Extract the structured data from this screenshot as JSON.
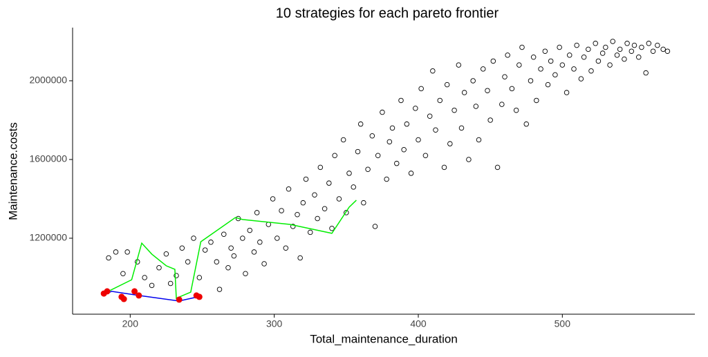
{
  "chart_data": {
    "type": "scatter",
    "title": "10  strategies for each pareto frontier",
    "x_label": "Total_maintenance_duration",
    "y_label": "Maintenance.costs",
    "xlim": [
      160,
      592
    ],
    "ylim": [
      814000,
      2270000
    ],
    "xticks": [
      200,
      300,
      400,
      500
    ],
    "yticks": [
      1200000,
      1600000,
      2000000
    ],
    "series": [
      {
        "kind": "points",
        "color": "#000000",
        "x": [
          185,
          190,
          195,
          198,
          205,
          210,
          215,
          220,
          225,
          228,
          232,
          236,
          240,
          244,
          248,
          252,
          256,
          260,
          262,
          265,
          268,
          270,
          272,
          275,
          278,
          280,
          283,
          286,
          288,
          290,
          293,
          296,
          299,
          302,
          305,
          308,
          310,
          313,
          316,
          318,
          320,
          322,
          325,
          328,
          330,
          332,
          335,
          338,
          340,
          342,
          345,
          348,
          350,
          352,
          355,
          358,
          360,
          362,
          365,
          368,
          370,
          372,
          375,
          378,
          380,
          382,
          385,
          388,
          390,
          392,
          395,
          398,
          400,
          402,
          405,
          408,
          410,
          412,
          415,
          418,
          420,
          422,
          425,
          428,
          430,
          432,
          435,
          438,
          440,
          442,
          445,
          448,
          450,
          452,
          455,
          458,
          460,
          462,
          465,
          468,
          470,
          472,
          475,
          478,
          480,
          482,
          485,
          488,
          490,
          492,
          495,
          498,
          500,
          503,
          505,
          508,
          510,
          513,
          515,
          518,
          520,
          523,
          525,
          528,
          530,
          533,
          535,
          538,
          540,
          543,
          545,
          548,
          550,
          553,
          555,
          558,
          560,
          563,
          566,
          570,
          573
        ],
        "values": [
          1100000,
          1130000,
          1020000,
          1130000,
          1080000,
          1000000,
          960000,
          1050000,
          1120000,
          970000,
          1010000,
          1150000,
          1080000,
          1200000,
          1000000,
          1140000,
          1180000,
          1080000,
          940000,
          1220000,
          1050000,
          1150000,
          1110000,
          1300000,
          1200000,
          1020000,
          1240000,
          1130000,
          1330000,
          1180000,
          1070000,
          1270000,
          1400000,
          1200000,
          1340000,
          1150000,
          1450000,
          1260000,
          1320000,
          1100000,
          1380000,
          1500000,
          1230000,
          1420000,
          1300000,
          1560000,
          1350000,
          1480000,
          1250000,
          1620000,
          1400000,
          1700000,
          1330000,
          1530000,
          1460000,
          1640000,
          1780000,
          1380000,
          1550000,
          1720000,
          1260000,
          1620000,
          1840000,
          1500000,
          1690000,
          1760000,
          1580000,
          1900000,
          1650000,
          1780000,
          1530000,
          1860000,
          1700000,
          1960000,
          1620000,
          1820000,
          2050000,
          1750000,
          1900000,
          1560000,
          1980000,
          1680000,
          1850000,
          2080000,
          1760000,
          1940000,
          1600000,
          2000000,
          1870000,
          1700000,
          2060000,
          1950000,
          1800000,
          2100000,
          1560000,
          1880000,
          2020000,
          2130000,
          1960000,
          1850000,
          2080000,
          2170000,
          1780000,
          2000000,
          2120000,
          1900000,
          2060000,
          2150000,
          1980000,
          2100000,
          2030000,
          2170000,
          2080000,
          1940000,
          2130000,
          2060000,
          2180000,
          2010000,
          2120000,
          2160000,
          2050000,
          2190000,
          2100000,
          2140000,
          2170000,
          2080000,
          2200000,
          2130000,
          2160000,
          2110000,
          2190000,
          2150000,
          2180000,
          2120000,
          2170000,
          2040000,
          2190000,
          2150000,
          2180000,
          2160000,
          2150000
        ]
      },
      {
        "kind": "line",
        "color": "#00ee00",
        "x": [
          181.7,
          201,
          208,
          215,
          225,
          231,
          232,
          242,
          249,
          273,
          278,
          311,
          340,
          352,
          357
        ],
        "values": [
          919000,
          989000,
          1175000,
          1119000,
          1060000,
          1042000,
          895000,
          926000,
          1182000,
          1305000,
          1295000,
          1270000,
          1225000,
          1358000,
          1393000
        ]
      },
      {
        "kind": "line",
        "color": "#0000ee",
        "x": [
          181,
          187,
          206,
          234,
          247
        ],
        "values": [
          909000,
          930000,
          909000,
          881000,
          902000
        ]
      },
      {
        "kind": "dots",
        "color": "#ee0000",
        "x": [
          181.7,
          184,
          194,
          195.6,
          203,
          206,
          234,
          246,
          248
        ],
        "values": [
          919000,
          930000,
          902000,
          891000,
          930000,
          909000,
          888000,
          909000,
          902000
        ]
      }
    ]
  }
}
